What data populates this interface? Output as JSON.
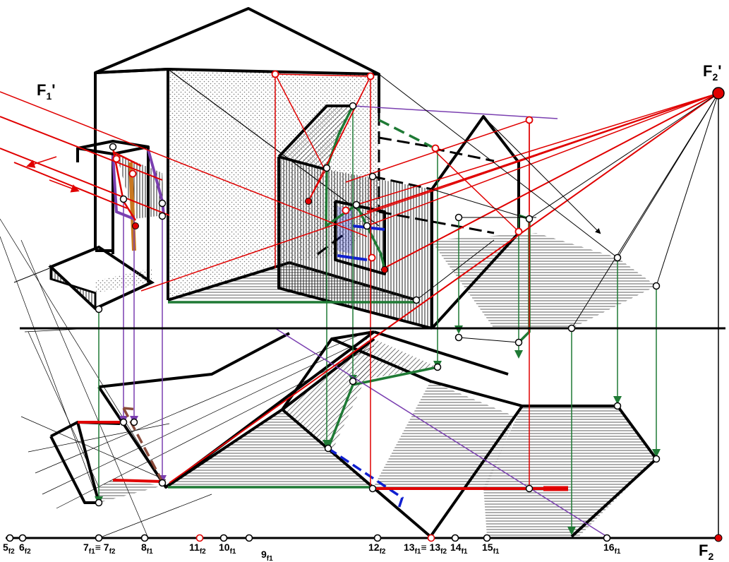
{
  "vanishing_points": {
    "f1_prime": {
      "main": "F",
      "sub": "1",
      "mark": "'"
    },
    "f2_prime": {
      "main": "F",
      "sub": "2",
      "mark": "'"
    },
    "f2": {
      "main": "F",
      "sub": "2"
    }
  },
  "ground_line_labels": [
    {
      "main": "5",
      "sub": "f2"
    },
    {
      "main": "6",
      "sub": "f2"
    },
    {
      "main": "7",
      "sub": "f1",
      "suffix": "≡ 7",
      "sub2": "f2"
    },
    {
      "main": "8",
      "sub": "f1"
    },
    {
      "main": "11",
      "sub": "f2"
    },
    {
      "main": "10",
      "sub": "f1"
    },
    {
      "main": "9",
      "sub": "f1"
    },
    {
      "main": "12",
      "sub": "f2"
    },
    {
      "main": "13",
      "sub": "f1",
      "suffix": "≡ 13",
      "sub2": "f2"
    },
    {
      "main": "14",
      "sub": "f1"
    },
    {
      "main": "15",
      "sub": "f1"
    },
    {
      "main": "16",
      "sub": "f1"
    }
  ],
  "colors": {
    "construction": "#000000",
    "light_rays": "#e00000",
    "projection_green": "#1f7a35",
    "projection_violet": "#7a3fb0",
    "hidden_blue": "#1020d0",
    "hidden_brown": "#8a4a3a",
    "post_orange": "#c87820"
  }
}
